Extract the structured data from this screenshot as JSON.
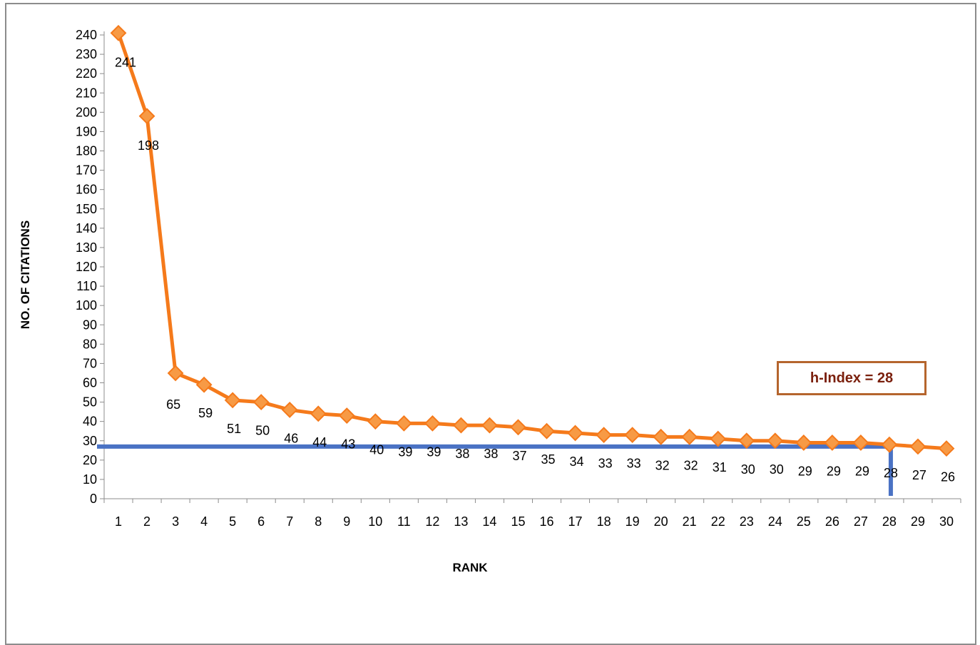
{
  "chart_data": {
    "type": "line",
    "categories": [
      "1",
      "2",
      "3",
      "4",
      "5",
      "6",
      "7",
      "8",
      "9",
      "10",
      "11",
      "12",
      "13",
      "14",
      "15",
      "16",
      "17",
      "18",
      "19",
      "20",
      "21",
      "22",
      "23",
      "24",
      "25",
      "26",
      "27",
      "28",
      "29",
      "30"
    ],
    "series": [
      {
        "values": [
          241,
          198,
          65,
          59,
          51,
          50,
          46,
          44,
          43,
          40,
          39,
          39,
          38,
          38,
          37,
          35,
          34,
          33,
          33,
          32,
          32,
          31,
          30,
          30,
          29,
          29,
          29,
          28,
          27,
          26
        ]
      }
    ],
    "data_labels": [
      "241",
      "198",
      "65",
      "59",
      "51",
      "50",
      "46",
      "44",
      "43",
      "40",
      "39",
      "39",
      "38",
      "38",
      "37",
      "35",
      "34",
      "33",
      "33",
      "32",
      "32",
      "31",
      "30",
      "30",
      "29",
      "29",
      "29",
      "28",
      "27",
      "26"
    ],
    "yticks": [
      "0",
      "10",
      "20",
      "30",
      "40",
      "50",
      "60",
      "70",
      "80",
      "90",
      "100",
      "110",
      "120",
      "130",
      "140",
      "150",
      "160",
      "170",
      "180",
      "190",
      "200",
      "210",
      "220",
      "230",
      "240"
    ],
    "ylim": [
      0,
      240
    ],
    "xlabel": "RANK",
    "ylabel": "NO. OF CITATIONS",
    "annotation": "h-Index = 28",
    "h_index_line": {
      "y": 27,
      "x_end": 28
    },
    "colors": {
      "series": "#f57a1b",
      "marker_edge": "#f57a1b",
      "h_line": "#4a72c4",
      "annotation_border": "#b5652d",
      "annotation_text": "#7a1f0c"
    }
  }
}
